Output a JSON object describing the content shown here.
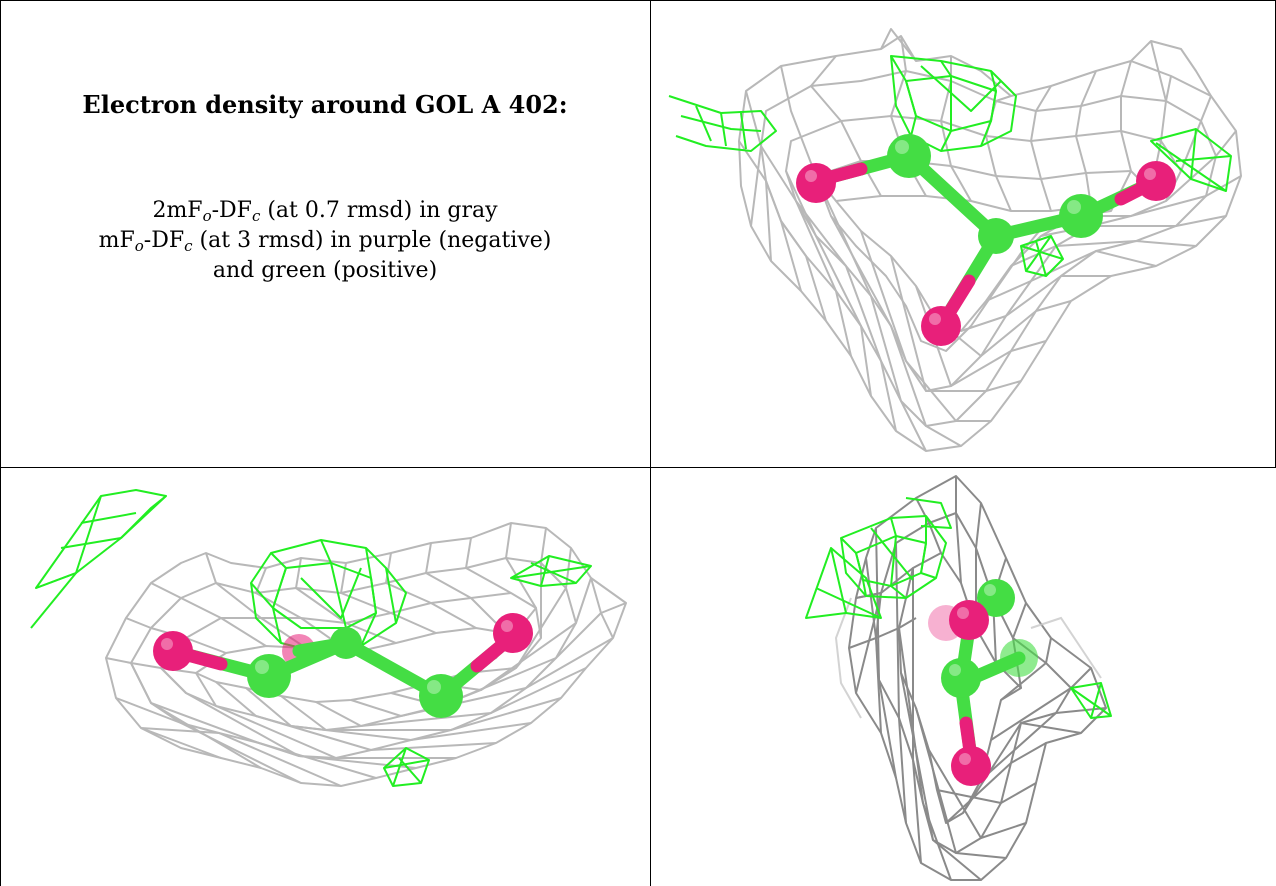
{
  "caption": {
    "title": "Electron density around GOL A 402:",
    "line1": {
      "pre": "2mF",
      "sub1": "o",
      "mid": "-DF",
      "sub2": "c",
      "post": " (at 0.7 rmsd) in gray"
    },
    "line2": {
      "pre": "mF",
      "sub1": "o",
      "mid": "-DF",
      "sub2": "c",
      "post": " (at 3 rmsd) in purple (negative)"
    },
    "line3": "and green (positive)"
  },
  "colors": {
    "mesh_2fofc": "#b8b8b8",
    "mesh_2fofc_dark": "#8a8a8a",
    "mesh_positive": "#22ee22",
    "carbon_atom": "#44dd44",
    "oxygen_atom": "#e8207a"
  },
  "panels": [
    {
      "name": "view-top-right"
    },
    {
      "name": "view-bottom-left"
    },
    {
      "name": "view-bottom-right"
    }
  ]
}
